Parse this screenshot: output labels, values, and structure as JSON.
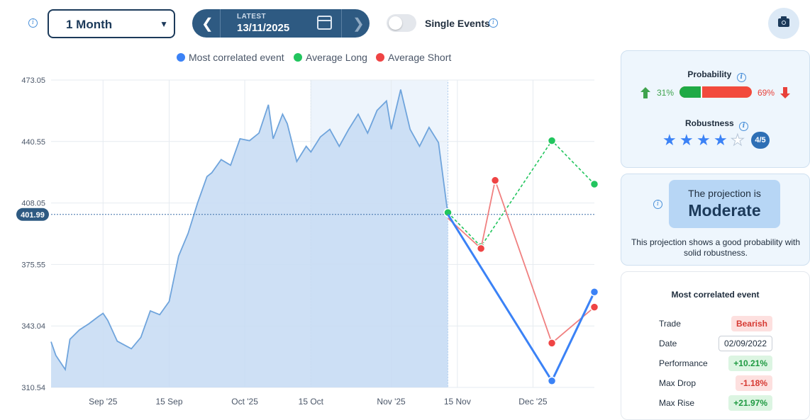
{
  "toolbar": {
    "period_value": "1 Month",
    "date_label": "LATEST",
    "date_value": "13/11/2025",
    "single_events_label": "Single Events",
    "single_events_on": false
  },
  "icons": {
    "info": "info-circle-icon",
    "prev": "chevron-left-icon",
    "next": "chevron-right-icon",
    "calendar": "calendar-icon",
    "camera": "camera-icon",
    "star": "star-icon",
    "up": "arrow-up-icon",
    "down": "arrow-down-icon"
  },
  "colors": {
    "accent": "#2e5a82",
    "primary_line": "#4a90d9",
    "long": "#22c55e",
    "short": "#ef4444",
    "area_fill": "#c5dbf3",
    "highlight": "#d6e6f8"
  },
  "chart_data": {
    "type": "area",
    "legend": [
      "Most correlated event",
      "Average Long",
      "Average Short"
    ],
    "y_ticks": [
      "473.05",
      "440.55",
      "408.05",
      "375.55",
      "343.04",
      "310.54"
    ],
    "ylim": [
      310.54,
      473.05
    ],
    "x_ticks": [
      "Sep '25",
      "15 Sep",
      "Oct '25",
      "15 Oct",
      "Nov '25",
      "15 Nov",
      "Dec '25"
    ],
    "current_value": "401.99",
    "history": [
      {
        "x": "2025-08-21",
        "y": 334.7
      },
      {
        "x": "2025-08-22",
        "y": 327.5
      },
      {
        "x": "2025-08-24",
        "y": 320.0
      },
      {
        "x": "2025-08-25",
        "y": 336.0
      },
      {
        "x": "2025-08-27",
        "y": 341.0
      },
      {
        "x": "2025-08-29",
        "y": 344.2
      },
      {
        "x": "2025-08-31",
        "y": 348.0
      },
      {
        "x": "2025-09-01",
        "y": 349.7
      },
      {
        "x": "2025-09-02",
        "y": 346.0
      },
      {
        "x": "2025-09-04",
        "y": 335.0
      },
      {
        "x": "2025-09-07",
        "y": 331.0
      },
      {
        "x": "2025-09-09",
        "y": 337.0
      },
      {
        "x": "2025-09-11",
        "y": 351.0
      },
      {
        "x": "2025-09-13",
        "y": 349.0
      },
      {
        "x": "2025-09-15",
        "y": 356.0
      },
      {
        "x": "2025-09-17",
        "y": 380.0
      },
      {
        "x": "2025-09-19",
        "y": 392.0
      },
      {
        "x": "2025-09-21",
        "y": 408.0
      },
      {
        "x": "2025-09-23",
        "y": 422.0
      },
      {
        "x": "2025-09-24",
        "y": 424.0
      },
      {
        "x": "2025-09-26",
        "y": 431.0
      },
      {
        "x": "2025-09-28",
        "y": 428.0
      },
      {
        "x": "2025-09-30",
        "y": 442.0
      },
      {
        "x": "2025-10-02",
        "y": 441.0
      },
      {
        "x": "2025-10-04",
        "y": 445.0
      },
      {
        "x": "2025-10-06",
        "y": 460.0
      },
      {
        "x": "2025-10-07",
        "y": 442.0
      },
      {
        "x": "2025-10-09",
        "y": 455.0
      },
      {
        "x": "2025-10-10",
        "y": 450.0
      },
      {
        "x": "2025-10-12",
        "y": 430.0
      },
      {
        "x": "2025-10-14",
        "y": 438.0
      },
      {
        "x": "2025-10-15",
        "y": 435.0
      },
      {
        "x": "2025-10-17",
        "y": 443.0
      },
      {
        "x": "2025-10-19",
        "y": 447.0
      },
      {
        "x": "2025-10-21",
        "y": 438.0
      },
      {
        "x": "2025-10-23",
        "y": 447.0
      },
      {
        "x": "2025-10-25",
        "y": 455.0
      },
      {
        "x": "2025-10-27",
        "y": 445.0
      },
      {
        "x": "2025-10-29",
        "y": 457.0
      },
      {
        "x": "2025-10-31",
        "y": 462.0
      },
      {
        "x": "2025-11-01",
        "y": 447.0
      },
      {
        "x": "2025-11-03",
        "y": 468.0
      },
      {
        "x": "2025-11-05",
        "y": 447.0
      },
      {
        "x": "2025-11-07",
        "y": 438.0
      },
      {
        "x": "2025-11-09",
        "y": 448.0
      },
      {
        "x": "2025-11-11",
        "y": 440.0
      },
      {
        "x": "2025-11-13",
        "y": 401.99
      }
    ],
    "projection": {
      "most_correlated": [
        {
          "x": "2025-11-13",
          "y": 401.99
        },
        {
          "x": "2025-12-05",
          "y": 314.0
        },
        {
          "x": "2025-12-14",
          "y": 361.0
        }
      ],
      "average_long": [
        {
          "x": "2025-11-13",
          "y": 403.0
        },
        {
          "x": "2025-11-20",
          "y": 385.0
        },
        {
          "x": "2025-12-05",
          "y": 441.0
        },
        {
          "x": "2025-12-14",
          "y": 418.0
        }
      ],
      "average_short": [
        {
          "x": "2025-11-13",
          "y": 400.0
        },
        {
          "x": "2025-11-20",
          "y": 384.0
        },
        {
          "x": "2025-11-23",
          "y": 420.0
        },
        {
          "x": "2025-12-05",
          "y": 334.0
        },
        {
          "x": "2025-12-14",
          "y": 353.0
        }
      ]
    },
    "highlight_range": [
      "2025-10-15",
      "2025-11-13"
    ],
    "grid": true
  },
  "probability": {
    "title": "Probability",
    "up_pct": "31%",
    "down_pct": "69%",
    "up_fraction": 0.31
  },
  "robustness": {
    "title": "Robustness",
    "rating": 4,
    "max": 5,
    "badge": "4/5"
  },
  "projection_card": {
    "pre": "The projection is",
    "level": "Moderate",
    "desc": "This projection shows a good probability with solid robustness."
  },
  "most_correlated": {
    "title": "Most correlated event",
    "rows": [
      {
        "key": "Trade",
        "value": "Bearish",
        "style": "bear"
      },
      {
        "key": "Date",
        "value": "02/09/2022",
        "style": "date"
      },
      {
        "key": "Performance",
        "value": "+10.21%",
        "style": "pos"
      },
      {
        "key": "Max Drop",
        "value": "-1.18%",
        "style": "neg"
      },
      {
        "key": "Max Rise",
        "value": "+21.97%",
        "style": "pos"
      }
    ]
  }
}
